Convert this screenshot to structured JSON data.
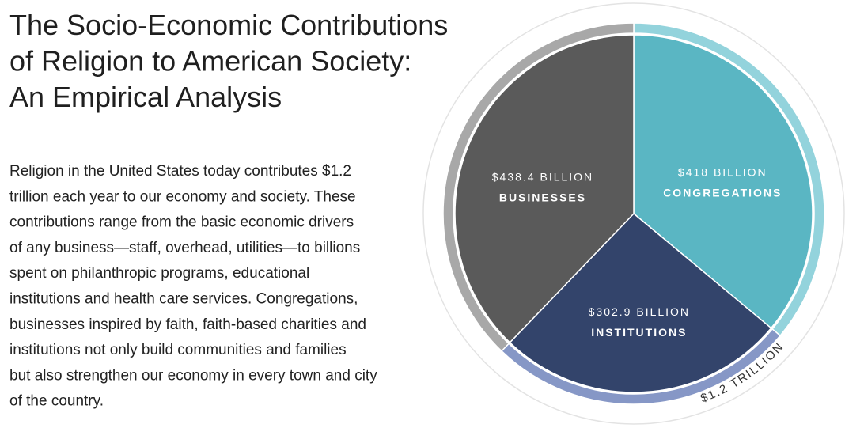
{
  "chart_data": {
    "type": "pie",
    "title_lines": [
      "The Socio-Economic Contributions",
      "of Religion to American Society:",
      "An Empirical Analysis"
    ],
    "description_lines": [
      "Religion in the United States today contributes $1.2",
      "trillion each year  to our economy and society. These",
      "contributions range from the basic economic drivers",
      "of any business—staff, overhead, utilities—to billions",
      "spent on philanthropic programs, educational",
      "institutions and health care services. Congregations,",
      "businesses inspired by faith, faith-based charities and",
      "institutions not only build communities and families",
      "but also strengthen our economy in every town and city",
      "of the country."
    ],
    "categories": [
      "CONGREGATIONS",
      "INSTITUTIONS",
      "BUSINESSES"
    ],
    "values": [
      418,
      302.9,
      438.4
    ],
    "value_labels": [
      "$418 BILLION",
      "$302.9 BILLION",
      "$438.4 BILLION"
    ],
    "colors": [
      "#5ab6c3",
      "#33446b",
      "#5a5a5a"
    ],
    "ring_colors": [
      "#93d3dc",
      "#8697c6",
      "#a8a8a8"
    ],
    "total_label": "$1.2 TRILLION"
  }
}
